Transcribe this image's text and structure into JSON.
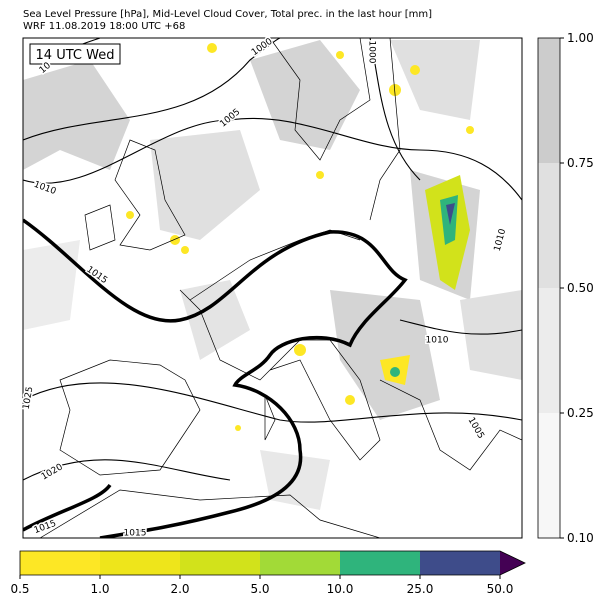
{
  "header": {
    "line1": "Sea Level Pressure [hPa], Mid-Level Cloud Cover, Total prec. in the last hour [mm]",
    "line2": "WRF 11.08.2019 18:00 UTC +68"
  },
  "map": {
    "time_label": "14 UTC Wed",
    "isobar_labels": [
      "1000",
      "1005",
      "1010",
      "1015",
      "1010",
      "1010",
      "1005",
      "1020",
      "1025",
      "1015",
      "1015",
      "1000",
      "10"
    ]
  },
  "cloud_colorbar": {
    "ticks": [
      "0.10",
      "0.25",
      "0.50",
      "0.75",
      "1.00"
    ],
    "colors": [
      "#f7f7f7",
      "#ececec",
      "#e0e0e0",
      "#cccccc"
    ]
  },
  "precip_colorbar": {
    "ticks": [
      "0.5",
      "1.0",
      "2.0",
      "5.0",
      "10.0",
      "25.0",
      "50.0"
    ],
    "colors": [
      "#fde725",
      "#eee51b",
      "#d2e21b",
      "#a2da37",
      "#2fb47c",
      "#3e4c8a"
    ],
    "extend_color": "#440154"
  }
}
